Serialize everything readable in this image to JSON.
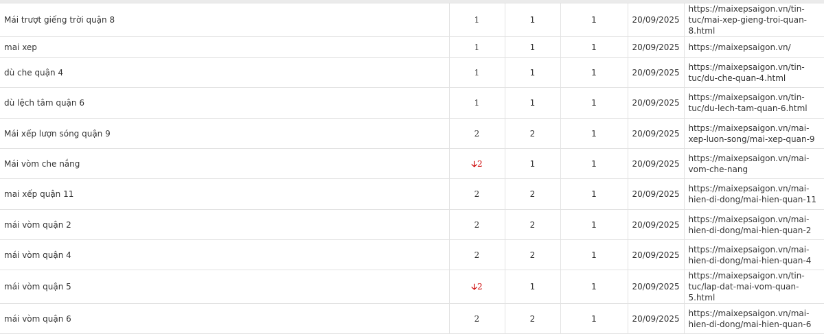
{
  "colors": {
    "down": "#cc0000",
    "border": "#e2e2e2"
  },
  "rows": [
    {
      "keyword": "Mái trượt giếng trời quận 8",
      "position": "1",
      "trend": "",
      "best": "1",
      "first": "1",
      "date": "20/09/2025",
      "url": "https://maixepsaigon.vn/tin-tuc/mai-xep-gieng-troi-quan-8.html"
    },
    {
      "keyword": "mai xep",
      "position": "1",
      "trend": "",
      "best": "1",
      "first": "1",
      "date": "20/09/2025",
      "url": "https://maixepsaigon.vn/"
    },
    {
      "keyword": "dù che quận 4",
      "position": "1",
      "trend": "",
      "best": "1",
      "first": "1",
      "date": "20/09/2025",
      "url": "https://maixepsaigon.vn/tin-tuc/du-che-quan-4.html"
    },
    {
      "keyword": "dù lệch tâm quận 6",
      "position": "1",
      "trend": "",
      "best": "1",
      "first": "1",
      "date": "20/09/2025",
      "url": "https://maixepsaigon.vn/tin-tuc/du-lech-tam-quan-6.html"
    },
    {
      "keyword": "Mái xếp lượn sóng quận 9",
      "position": "2",
      "trend": "",
      "best": "2",
      "first": "1",
      "date": "20/09/2025",
      "url": "https://maixepsaigon.vn/mai-xep-luon-song/mai-xep-quan-9"
    },
    {
      "keyword": "Mái vòm che nắng",
      "position": "2",
      "trend": "down",
      "best": "1",
      "first": "1",
      "date": "20/09/2025",
      "url": "https://maixepsaigon.vn/mai-vom-che-nang"
    },
    {
      "keyword": "mai xếp quận 11",
      "position": "2",
      "trend": "",
      "best": "2",
      "first": "1",
      "date": "20/09/2025",
      "url": "https://maixepsaigon.vn/mai-hien-di-dong/mai-hien-quan-11"
    },
    {
      "keyword": "mái vòm quận 2",
      "position": "2",
      "trend": "",
      "best": "2",
      "first": "1",
      "date": "20/09/2025",
      "url": "https://maixepsaigon.vn/mai-hien-di-dong/mai-hien-quan-2"
    },
    {
      "keyword": "mái vòm quận 4",
      "position": "2",
      "trend": "",
      "best": "2",
      "first": "1",
      "date": "20/09/2025",
      "url": "https://maixepsaigon.vn/mai-hien-di-dong/mai-hien-quan-4"
    },
    {
      "keyword": "mái vòm quận 5",
      "position": "2",
      "trend": "down",
      "best": "1",
      "first": "1",
      "date": "20/09/2025",
      "url": "https://maixepsaigon.vn/tin-tuc/lap-dat-mai-vom-quan-5.html"
    },
    {
      "keyword": "mái vòm quận 6",
      "position": "2",
      "trend": "",
      "best": "2",
      "first": "1",
      "date": "20/09/2025",
      "url": "https://maixepsaigon.vn/mai-hien-di-dong/mai-hien-quan-6"
    }
  ]
}
